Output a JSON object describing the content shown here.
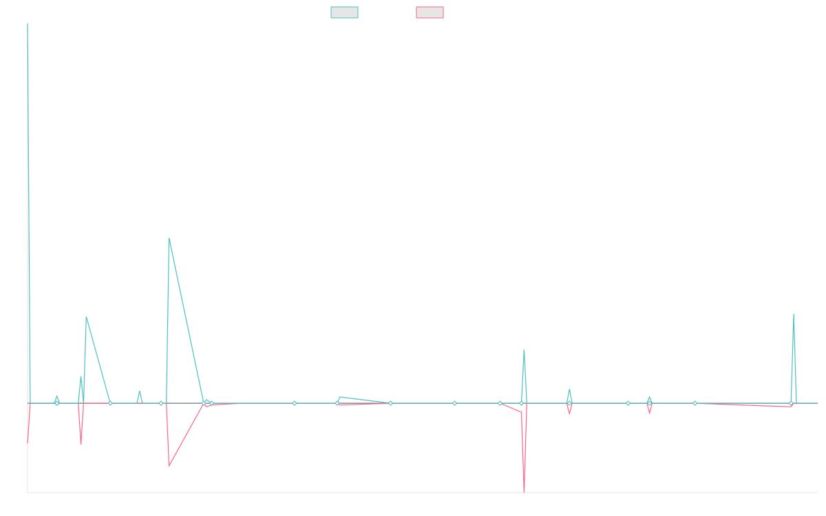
{
  "colors": {
    "series_a": "#4bc0c0",
    "series_b": "#ff6384",
    "legend_fill": "#e6e6e6",
    "axis": "#e5e5e5"
  },
  "chart_data": {
    "type": "line",
    "title": "",
    "xlabel": "",
    "ylabel": "",
    "grid": false,
    "legend_position": "top-center",
    "ylim": [
      -100,
      425
    ],
    "xlim": [
      0,
      296
    ],
    "x": [
      0,
      1,
      10,
      11,
      12,
      19,
      20,
      21,
      22,
      31,
      41,
      42,
      43,
      50,
      52,
      53,
      66,
      67,
      69,
      80,
      100,
      116,
      117,
      136,
      160,
      177,
      185,
      186,
      187,
      188,
      202,
      203,
      204,
      225,
      232,
      233,
      234,
      250,
      286,
      287,
      288,
      296
    ],
    "series": [
      {
        "name": "",
        "values": [
          425,
          0,
          0,
          8,
          0,
          0,
          30,
          0,
          97,
          0,
          0,
          14,
          0,
          0,
          0,
          185,
          0,
          4,
          0,
          0,
          0,
          0,
          7,
          0,
          0,
          0,
          0,
          60,
          0,
          0,
          0,
          16,
          0,
          0,
          0,
          7,
          0,
          0,
          0,
          100,
          0,
          0
        ],
        "markers": [
          11,
          31,
          50,
          66,
          69,
          100,
          116,
          136,
          160,
          177,
          185,
          203,
          225,
          233,
          250,
          286
        ]
      },
      {
        "name": "",
        "values": [
          -45,
          0,
          0,
          -2,
          0,
          0,
          -46,
          0,
          0,
          0,
          0,
          0,
          0,
          0,
          0,
          -70,
          0,
          -4,
          -2,
          0,
          0,
          0,
          -2,
          0,
          0,
          0,
          -10,
          -100,
          0,
          0,
          0,
          -12,
          0,
          0,
          0,
          -11,
          0,
          0,
          -4,
          0,
          0,
          0
        ],
        "markers": [
          11,
          31,
          50,
          66,
          69,
          100,
          116,
          136,
          160,
          177,
          185,
          203,
          225,
          233,
          250,
          286
        ]
      }
    ]
  }
}
